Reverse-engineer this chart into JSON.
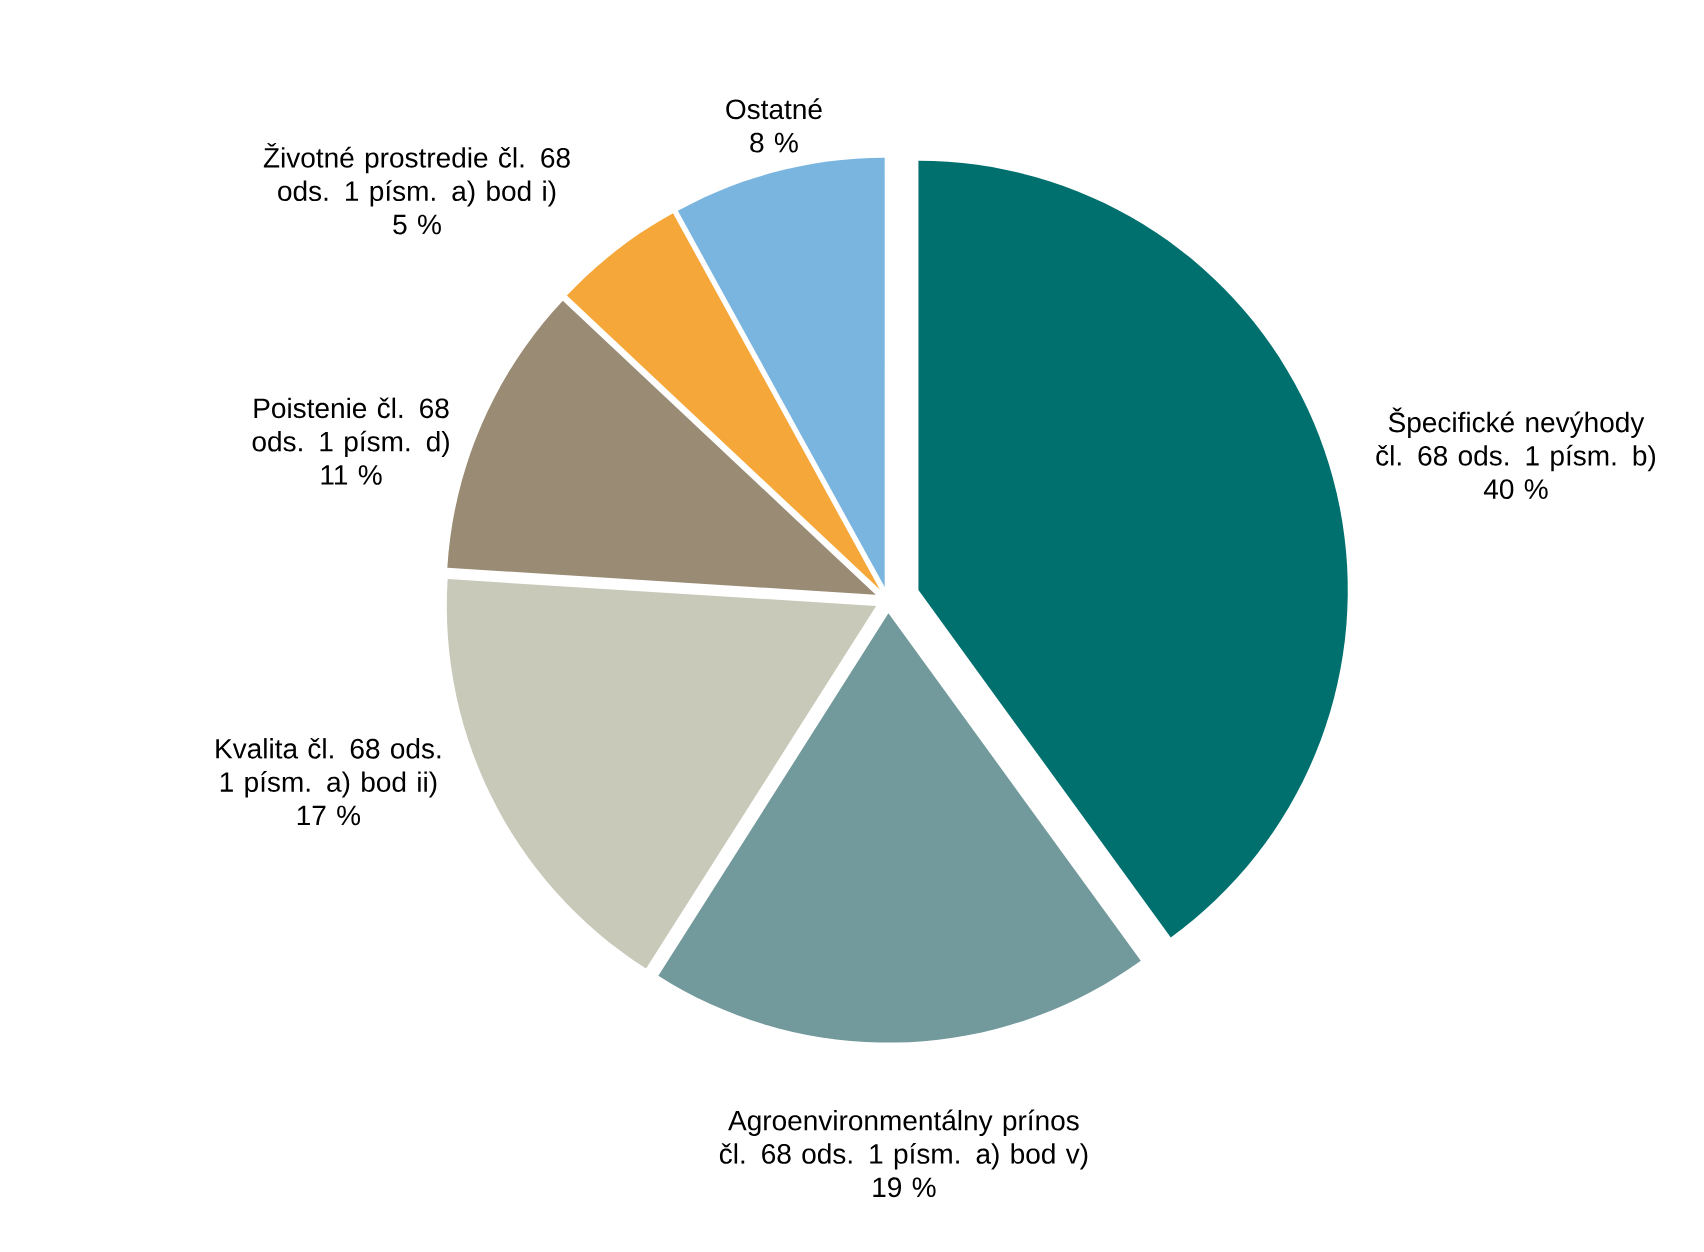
{
  "chart_data": {
    "type": "pie",
    "categories": [
      "Špecifické nevýhody čl. 68 ods. 1 písm. b)",
      "Agroenvironmentálny prínos čl. 68 ods. 1 písm. a) bod v)",
      "Kvalita čl. 68 ods. 1 písm. a) bod ii)",
      "Poistenie čl. 68 ods. 1 písm. d)",
      "Životné prostredie čl. 68 ods. 1 písm. a) bod i)",
      "Ostatné"
    ],
    "values": [
      40,
      19,
      17,
      11,
      5,
      8
    ],
    "value_labels": [
      "40 %",
      "19 %",
      "17 %",
      "11 %",
      "5 %",
      "8 %"
    ],
    "colors": [
      "#00706f",
      "#72999b",
      "#c8c9b9",
      "#9a8c74",
      "#f5a73a",
      "#7ab5e0"
    ]
  }
}
